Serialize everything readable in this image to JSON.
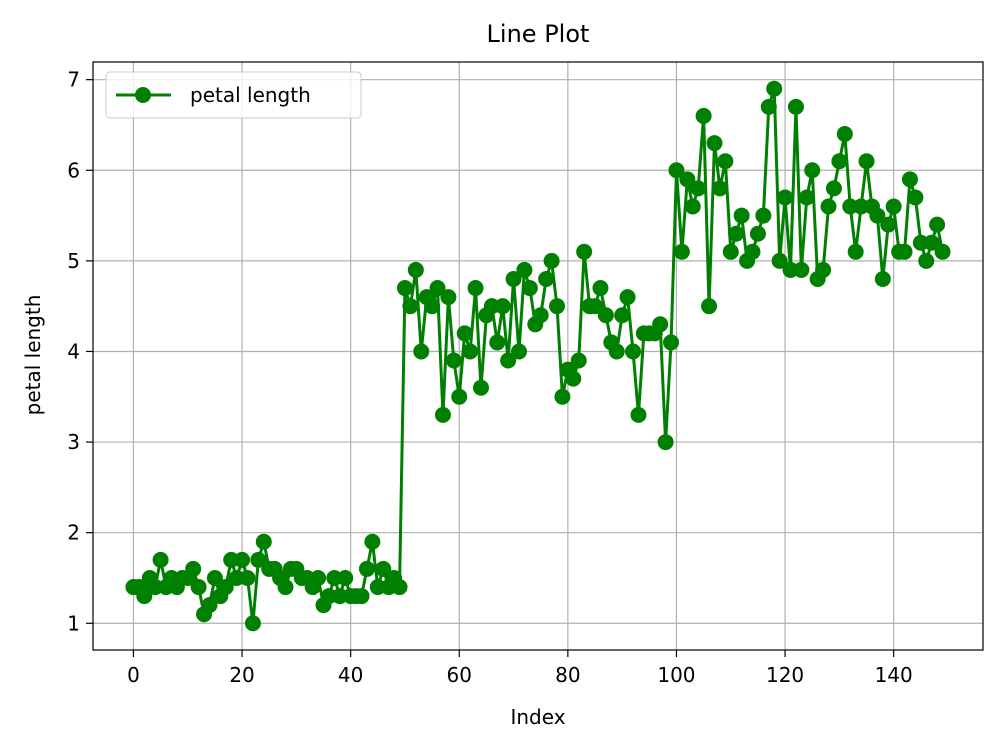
{
  "chart_data": {
    "type": "line",
    "title": "Line Plot",
    "xlabel": "Index",
    "ylabel": "petal length",
    "xlim": [
      -7.45,
      156.45
    ],
    "ylim": [
      0.705,
      7.195
    ],
    "xticks": [
      0,
      20,
      40,
      60,
      80,
      100,
      120,
      140
    ],
    "yticks": [
      1,
      2,
      3,
      4,
      5,
      6,
      7
    ],
    "grid": true,
    "legend_position": "top-left",
    "series": [
      {
        "name": "petal length",
        "color": "#008000",
        "marker": "circle",
        "values": [
          1.4,
          1.4,
          1.3,
          1.5,
          1.4,
          1.7,
          1.4,
          1.5,
          1.4,
          1.5,
          1.5,
          1.6,
          1.4,
          1.1,
          1.2,
          1.5,
          1.3,
          1.4,
          1.7,
          1.5,
          1.7,
          1.5,
          1.0,
          1.7,
          1.9,
          1.6,
          1.6,
          1.5,
          1.4,
          1.6,
          1.6,
          1.5,
          1.5,
          1.4,
          1.5,
          1.2,
          1.3,
          1.5,
          1.3,
          1.5,
          1.3,
          1.3,
          1.3,
          1.6,
          1.9,
          1.4,
          1.6,
          1.4,
          1.5,
          1.4,
          4.7,
          4.5,
          4.9,
          4.0,
          4.6,
          4.5,
          4.7,
          3.3,
          4.6,
          3.9,
          3.5,
          4.2,
          4.0,
          4.7,
          3.6,
          4.4,
          4.5,
          4.1,
          4.5,
          3.9,
          4.8,
          4.0,
          4.9,
          4.7,
          4.3,
          4.4,
          4.8,
          5.0,
          4.5,
          3.5,
          3.8,
          3.7,
          3.9,
          5.1,
          4.5,
          4.5,
          4.7,
          4.4,
          4.1,
          4.0,
          4.4,
          4.6,
          4.0,
          3.3,
          4.2,
          4.2,
          4.2,
          4.3,
          3.0,
          4.1,
          6.0,
          5.1,
          5.9,
          5.6,
          5.8,
          6.6,
          4.5,
          6.3,
          5.8,
          6.1,
          5.1,
          5.3,
          5.5,
          5.0,
          5.1,
          5.3,
          5.5,
          6.7,
          6.9,
          5.0,
          5.7,
          4.9,
          6.7,
          4.9,
          5.7,
          6.0,
          4.8,
          4.9,
          5.6,
          5.8,
          6.1,
          6.4,
          5.6,
          5.1,
          5.6,
          6.1,
          5.6,
          5.5,
          4.8,
          5.4,
          5.6,
          5.1,
          5.1,
          5.9,
          5.7,
          5.2,
          5.0,
          5.2,
          5.4,
          5.1
        ]
      }
    ]
  }
}
